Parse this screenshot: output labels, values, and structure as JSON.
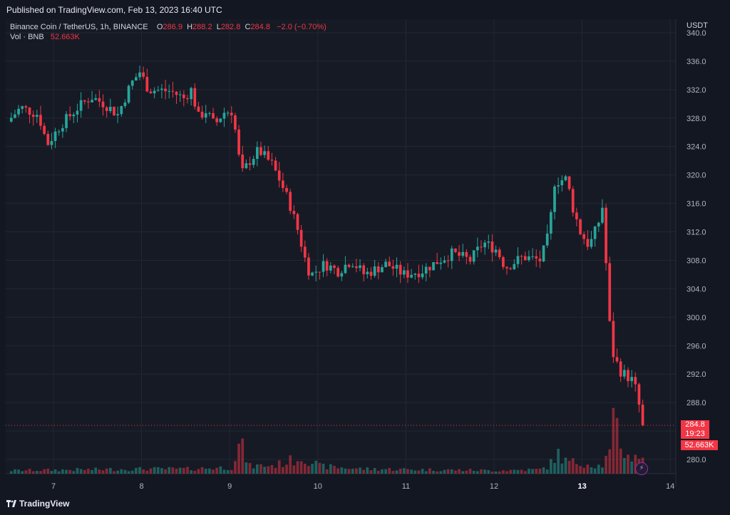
{
  "header": {
    "published": "Published on TradingView.com, Feb 13, 2023 16:40 UTC"
  },
  "legend": {
    "symbol": "Binance Coin / TetherUS, 1h, BINANCE",
    "o_label": "O",
    "o_value": "286.9",
    "h_label": "H",
    "h_value": "288.2",
    "l_label": "L",
    "l_value": "282.8",
    "c_label": "C",
    "c_value": "284.8",
    "change": "−2.0 (−0.70%)",
    "vol_label": "Vol · BNB",
    "vol_value": "52.663K"
  },
  "price_axis": {
    "unit": "USDT"
  },
  "price_tag": {
    "price": "284.8",
    "countdown": "19:23"
  },
  "volume_tag": {
    "value": "52.663K"
  },
  "footer": {
    "brand": "TradingView"
  },
  "colors": {
    "up": "#26a69a",
    "down": "#f23645",
    "background": "#161a25"
  },
  "chart_data": {
    "type": "candlestick",
    "title": "Binance Coin / TetherUS, 1h, BINANCE",
    "y_ticks": [
      "340.0",
      "336.0",
      "332.0",
      "328.0",
      "324.0",
      "320.0",
      "316.0",
      "312.0",
      "308.0",
      "304.0",
      "300.0",
      "296.0",
      "292.0",
      "288.0",
      "280.0"
    ],
    "x_ticks": [
      "7",
      "8",
      "9",
      "10",
      "11",
      "12",
      "13",
      "14"
    ],
    "ylim": [
      279,
      341
    ],
    "x_start_day": 6.5,
    "interval_hours": 1,
    "last_price": 284.8,
    "close_path": [
      [
        6.5,
        327.5
      ],
      [
        6.65,
        329.5
      ],
      [
        6.85,
        328.5
      ],
      [
        6.95,
        324.3
      ],
      [
        7.1,
        327.0
      ],
      [
        7.3,
        329.5
      ],
      [
        7.45,
        331.0
      ],
      [
        7.6,
        330.0
      ],
      [
        7.75,
        328.5
      ],
      [
        7.9,
        332.8
      ],
      [
        8.0,
        334.5
      ],
      [
        8.1,
        332.0
      ],
      [
        8.35,
        331.8
      ],
      [
        8.5,
        330.8
      ],
      [
        8.6,
        332.2
      ],
      [
        8.65,
        328.0
      ],
      [
        8.75,
        329.0
      ],
      [
        8.85,
        327.0
      ],
      [
        8.95,
        328.8
      ],
      [
        9.05,
        329.0
      ],
      [
        9.1,
        325.0
      ],
      [
        9.15,
        320.0
      ],
      [
        9.25,
        322.0
      ],
      [
        9.35,
        323.5
      ],
      [
        9.5,
        321.5
      ],
      [
        9.6,
        319.0
      ],
      [
        9.7,
        316.0
      ],
      [
        9.8,
        312.0
      ],
      [
        9.9,
        307.0
      ],
      [
        9.95,
        306.0
      ],
      [
        10.1,
        307.5
      ],
      [
        10.25,
        306.5
      ],
      [
        10.4,
        308.0
      ],
      [
        10.55,
        306.0
      ],
      [
        10.8,
        307.5
      ],
      [
        11.0,
        306.0
      ],
      [
        11.2,
        306.5
      ],
      [
        11.4,
        308.0
      ],
      [
        11.55,
        309.0
      ],
      [
        11.75,
        308.0
      ],
      [
        11.9,
        310.5
      ],
      [
        12.05,
        309.5
      ],
      [
        12.15,
        307.0
      ],
      [
        12.35,
        308.5
      ],
      [
        12.55,
        308.0
      ],
      [
        12.65,
        312.0
      ],
      [
        12.7,
        319.0
      ],
      [
        12.85,
        319.5
      ],
      [
        12.9,
        316.0
      ],
      [
        13.0,
        312.0
      ],
      [
        13.1,
        310.0
      ],
      [
        13.2,
        313.0
      ],
      [
        13.25,
        315.5
      ],
      [
        13.3,
        306.0
      ],
      [
        13.35,
        295.5
      ],
      [
        13.45,
        292.5
      ],
      [
        13.6,
        291.0
      ],
      [
        13.65,
        289.0
      ],
      [
        13.7,
        284.8
      ]
    ],
    "volume_path": [
      [
        6.5,
        6
      ],
      [
        7.0,
        7
      ],
      [
        7.5,
        8
      ],
      [
        8.0,
        9
      ],
      [
        8.5,
        9
      ],
      [
        9.0,
        12
      ],
      [
        9.1,
        58
      ],
      [
        9.2,
        14
      ],
      [
        9.5,
        16
      ],
      [
        9.75,
        28
      ],
      [
        9.8,
        32
      ],
      [
        9.9,
        24
      ],
      [
        10.0,
        14
      ],
      [
        10.5,
        9
      ],
      [
        11.0,
        8
      ],
      [
        11.5,
        7
      ],
      [
        12.0,
        6
      ],
      [
        12.5,
        8
      ],
      [
        12.6,
        14
      ],
      [
        12.7,
        38
      ],
      [
        12.8,
        22
      ],
      [
        13.0,
        20
      ],
      [
        13.2,
        14
      ],
      [
        13.3,
        40
      ],
      [
        13.35,
        110
      ],
      [
        13.4,
        60
      ],
      [
        13.5,
        30
      ],
      [
        13.6,
        40
      ],
      [
        13.7,
        16
      ]
    ]
  }
}
